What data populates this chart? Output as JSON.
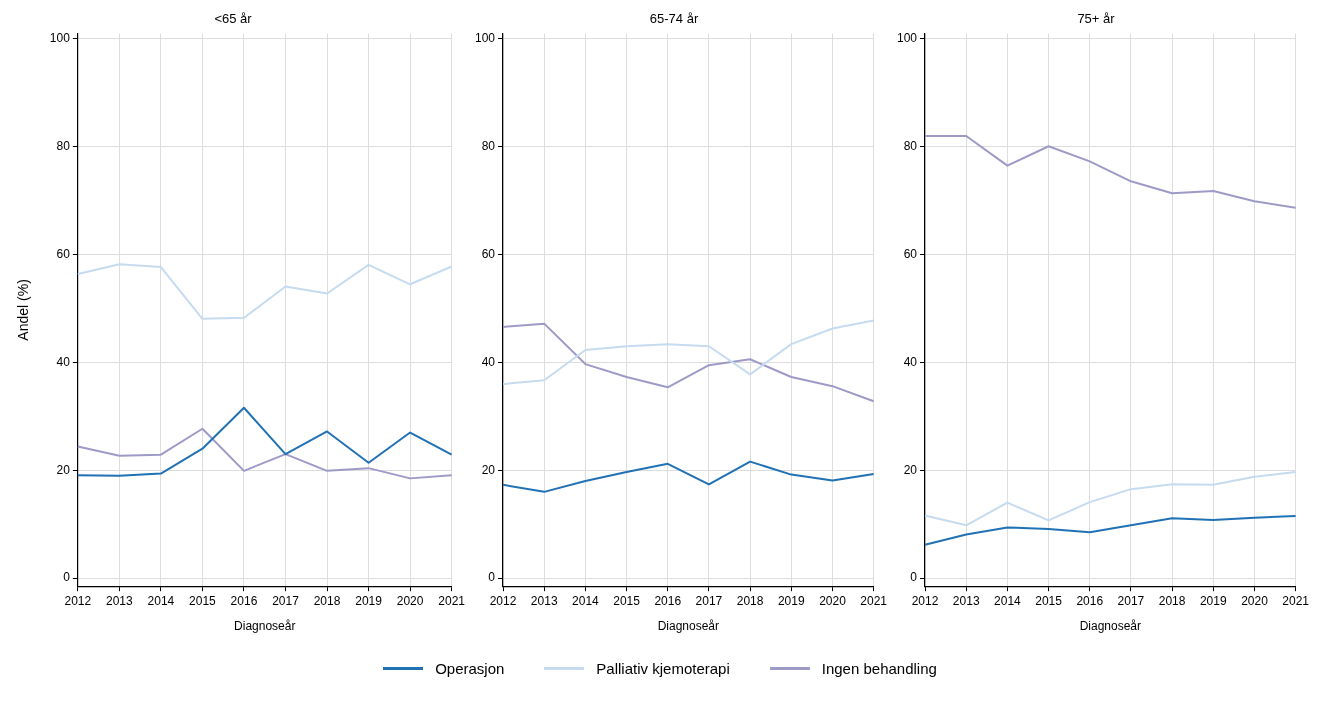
{
  "chart_data": [
    {
      "type": "line",
      "title": "<65 år",
      "xlabel": "Diagnoseår",
      "ylabel": "Andel (%)",
      "categories": [
        "2012",
        "2013",
        "2014",
        "2015",
        "2016",
        "2017",
        "2018",
        "2019",
        "2020",
        "2021"
      ],
      "ylim": [
        -1.5,
        101
      ],
      "yticks": [
        0,
        20,
        40,
        60,
        80,
        100
      ],
      "grid": true,
      "legend": "bottom",
      "marker": "none",
      "series": [
        {
          "name": "Operasjon",
          "color": "#2171b5",
          "values": [
            19.1,
            19.0,
            19.4,
            24.0,
            31.6,
            23.0,
            27.2,
            21.4,
            27.0,
            22.9
          ]
        },
        {
          "name": "Palliativ kjemoterapi",
          "color": "#c6dbef",
          "values": [
            56.4,
            58.2,
            57.7,
            48.1,
            48.3,
            54.1,
            52.8,
            58.1,
            54.5,
            57.8
          ]
        },
        {
          "name": "Ingen behandling",
          "color": "#9e9ac8",
          "values": [
            24.4,
            22.7,
            22.9,
            27.7,
            19.9,
            23.0,
            19.9,
            20.4,
            18.5,
            19.1
          ]
        }
      ]
    },
    {
      "type": "line",
      "title": "65-74 år",
      "xlabel": "Diagnoseår",
      "categories": [
        "2012",
        "2013",
        "2014",
        "2015",
        "2016",
        "2017",
        "2018",
        "2019",
        "2020",
        "2021"
      ],
      "ylim": [
        -1.5,
        101
      ],
      "yticks": [
        0,
        20,
        40,
        60,
        80,
        100
      ],
      "grid": true,
      "marker": "none",
      "series": [
        {
          "color": "#2171b5",
          "values": [
            17.3,
            16.0,
            18.0,
            19.7,
            21.2,
            17.4,
            21.6,
            19.2,
            18.1,
            19.3
          ]
        },
        {
          "color": "#c6dbef",
          "values": [
            36.0,
            36.7,
            42.3,
            43.0,
            43.4,
            43.0,
            37.8,
            43.4,
            46.3,
            47.8
          ]
        },
        {
          "color": "#9e9ac8",
          "values": [
            46.6,
            47.2,
            39.7,
            37.3,
            35.4,
            39.5,
            40.6,
            37.3,
            35.6,
            32.8
          ]
        }
      ]
    },
    {
      "type": "line",
      "title": "75+ år",
      "xlabel": "Diagnoseår",
      "categories": [
        "2012",
        "2013",
        "2014",
        "2015",
        "2016",
        "2017",
        "2018",
        "2019",
        "2020",
        "2021"
      ],
      "ylim": [
        -1.5,
        101
      ],
      "yticks": [
        0,
        20,
        40,
        60,
        80,
        100
      ],
      "grid": true,
      "marker": "none",
      "series": [
        {
          "color": "#2171b5",
          "values": [
            6.2,
            8.1,
            9.4,
            9.1,
            8.5,
            9.8,
            11.1,
            10.8,
            11.2,
            11.5
          ]
        },
        {
          "color": "#c6dbef",
          "values": [
            11.6,
            9.8,
            14.0,
            10.7,
            14.1,
            16.5,
            17.4,
            17.3,
            18.8,
            19.7
          ]
        },
        {
          "color": "#9e9ac8",
          "values": [
            82.0,
            82.0,
            76.5,
            80.1,
            77.3,
            73.6,
            71.4,
            71.8,
            69.9,
            68.7
          ]
        }
      ]
    }
  ]
}
